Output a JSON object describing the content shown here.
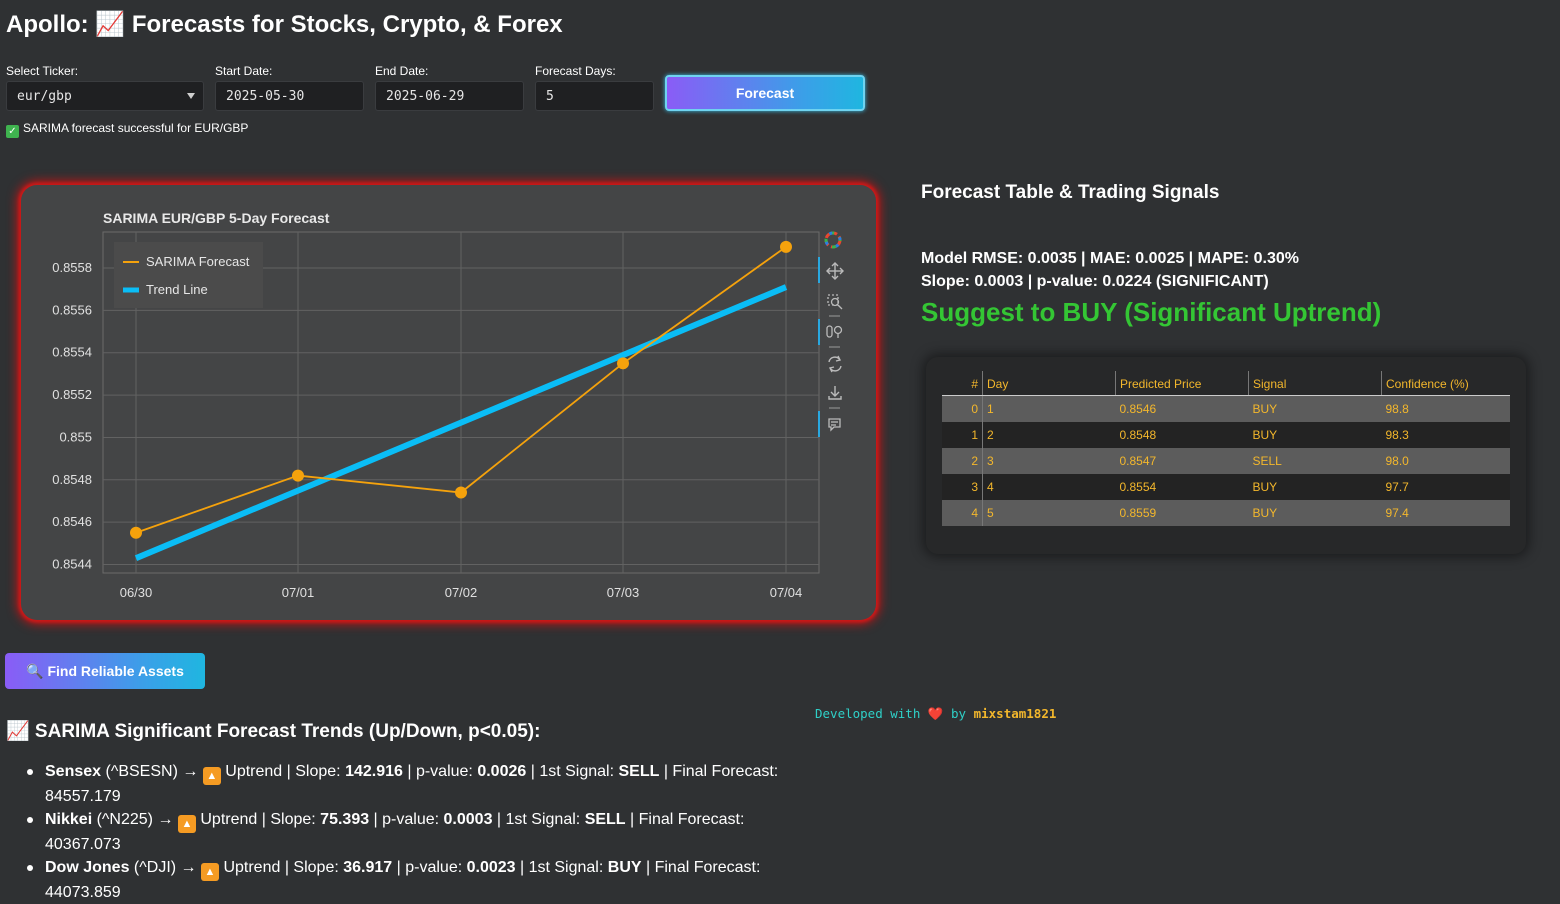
{
  "page": {
    "title": "Apollo: 📈 Forecasts for Stocks, Crypto, & Forex"
  },
  "controls": {
    "ticker_label": "Select Ticker:",
    "ticker_value": "eur/gbp",
    "start_label": "Start Date:",
    "start_value": "2025-05-30",
    "end_label": "End Date:",
    "end_value": "2025-06-29",
    "days_label": "Forecast Days:",
    "days_value": "5",
    "forecast_button": "Forecast"
  },
  "status": {
    "icon": "check-mark-icon",
    "text": "SARIMA forecast successful for EUR/GBP"
  },
  "chart_data": {
    "type": "line",
    "title": "SARIMA EUR/GBP 5-Day Forecast",
    "categories": [
      "06/30",
      "07/01",
      "07/02",
      "07/03",
      "07/04"
    ],
    "series": [
      {
        "name": "SARIMA Forecast",
        "values": [
          0.85455,
          0.85482,
          0.85474,
          0.85535,
          0.8559
        ],
        "color": "#f5a20c",
        "markers": true
      },
      {
        "name": "Trend Line",
        "values": [
          0.85443,
          0.85475,
          0.85507,
          0.85539,
          0.85571
        ],
        "color": "#0abdf6",
        "markers": false
      }
    ],
    "ylim": [
      0.85436,
      0.85597
    ],
    "yticks": [
      0.8544,
      0.8546,
      0.8548,
      0.855,
      0.8552,
      0.8554,
      0.8556,
      0.8558
    ],
    "ytick_labels": [
      "0.8544",
      "0.8546",
      "0.8548",
      "0.855",
      "0.8552",
      "0.8554",
      "0.8556",
      "0.8558"
    ],
    "legend": "top-left",
    "grid": true
  },
  "toolbar": {
    "tools": [
      "bokeh-logo-icon",
      "pan-icon",
      "box-zoom-icon",
      "wheel-zoom-icon",
      "reset-icon",
      "save-icon",
      "hover-icon"
    ]
  },
  "side": {
    "heading": "Forecast Table & Trading Signals",
    "metrics_line1": "Model RMSE: 0.0035 | MAE: 0.0025 | MAPE: 0.30%",
    "metrics_line2": "Slope: 0.0003 | p-value: 0.0224 (SIGNIFICANT)",
    "suggestion": "Suggest to BUY (Significant Uptrend)",
    "suggestion_color": "#34c634"
  },
  "table": {
    "headers": [
      "#",
      "Day",
      "Predicted Price",
      "Signal",
      "Confidence (%)"
    ],
    "rows": [
      [
        "0",
        "1",
        "0.8546",
        "BUY",
        "98.8"
      ],
      [
        "1",
        "2",
        "0.8548",
        "BUY",
        "98.3"
      ],
      [
        "2",
        "3",
        "0.8547",
        "SELL",
        "98.0"
      ],
      [
        "3",
        "4",
        "0.8554",
        "BUY",
        "97.7"
      ],
      [
        "4",
        "5",
        "0.8559",
        "BUY",
        "97.4"
      ]
    ]
  },
  "find_button": {
    "icon": "magnifier-icon",
    "label": "🔍 Find Reliable Assets"
  },
  "credit": {
    "prefix": "Developed with",
    "heart": "❤️",
    "by": "by",
    "author": "mixstam1821"
  },
  "trends": {
    "heading": "📈 SARIMA Significant Forecast Trends (Up/Down, p<0.05):",
    "items": [
      {
        "name": "Sensex",
        "symbol": "(^BSESN)",
        "arrow": "→",
        "trend": "Uptrend",
        "slope_label": "Slope:",
        "slope": "142.916",
        "p_label": "p-value:",
        "p": "0.0026",
        "signal_label": "1st Signal:",
        "signal": "SELL",
        "final_label": "Final Forecast:",
        "final": "84557.179"
      },
      {
        "name": "Nikkei",
        "symbol": "(^N225)",
        "arrow": "→",
        "trend": "Uptrend",
        "slope_label": "Slope:",
        "slope": "75.393",
        "p_label": "p-value:",
        "p": "0.0003",
        "signal_label": "1st Signal:",
        "signal": "SELL",
        "final_label": "Final Forecast:",
        "final": "40367.073"
      },
      {
        "name": "Dow Jones",
        "symbol": "(^DJI)",
        "arrow": "→",
        "trend": "Uptrend",
        "slope_label": "Slope:",
        "slope": "36.917",
        "p_label": "p-value:",
        "p": "0.0023",
        "signal_label": "1st Signal:",
        "signal": "BUY",
        "final_label": "Final Forecast:",
        "final": "44073.859"
      }
    ]
  }
}
